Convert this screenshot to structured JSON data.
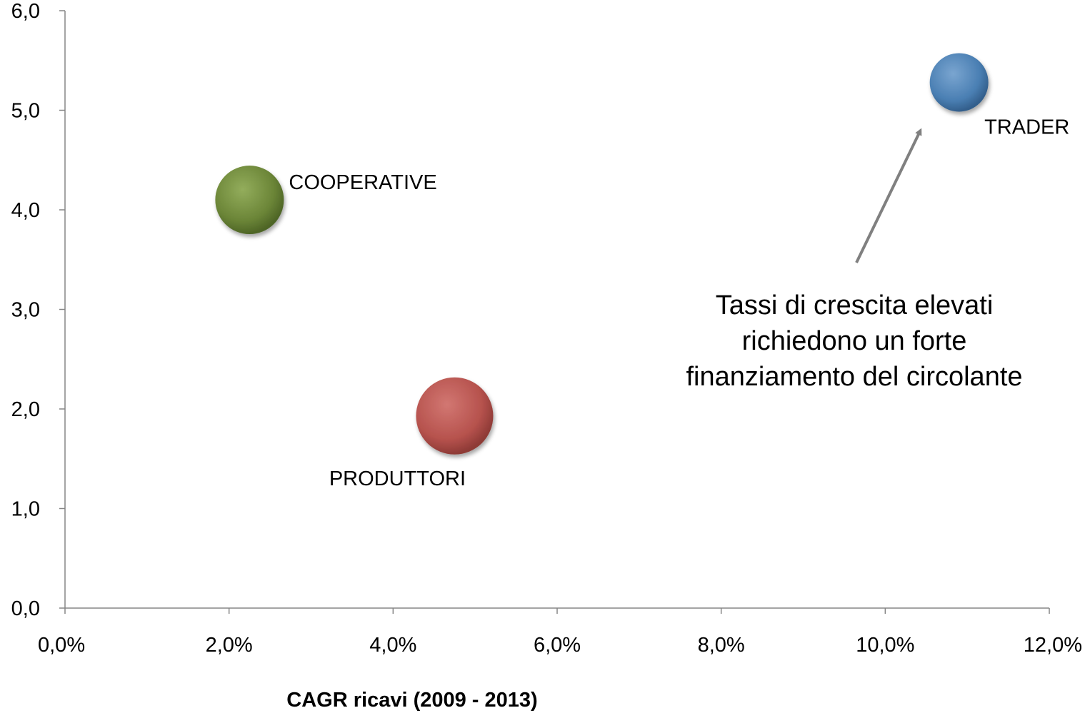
{
  "chart_data": {
    "type": "scatter",
    "title": "",
    "xlabel": "CAGR ricavi (2009 - 2013)",
    "ylabel": "",
    "xlim": [
      0,
      12
    ],
    "ylim": [
      0,
      6
    ],
    "x_ticks": [
      "0,0%",
      "2,0%",
      "4,0%",
      "6,0%",
      "8,0%",
      "10,0%",
      "12,0%"
    ],
    "y_ticks": [
      "0,0",
      "1,0",
      "2,0",
      "3,0",
      "4,0",
      "5,0",
      "6,0"
    ],
    "grid": false,
    "legend": "none",
    "points": [
      {
        "label": "COOPERATIVE",
        "x": 2.25,
        "y": 4.1,
        "color": "#6b8537"
      },
      {
        "label": "PRODUTTORI",
        "x": 4.75,
        "y": 1.93,
        "color": "#b6524d"
      },
      {
        "label": "TRADER",
        "x": 10.9,
        "y": 5.28,
        "color": "#4a7fb3"
      }
    ],
    "annotation": {
      "lines": [
        "Tassi di crescita elevati",
        "richiedono un forte",
        "finanziamento del circolante"
      ],
      "arrow_color": "#808080"
    }
  }
}
